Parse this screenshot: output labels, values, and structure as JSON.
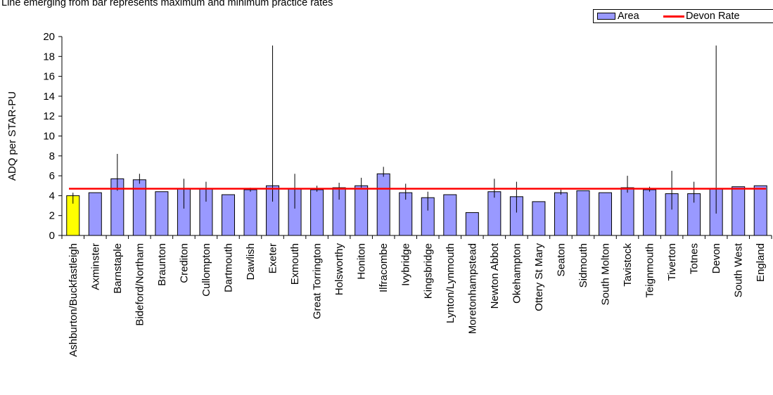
{
  "chart_data": {
    "type": "bar",
    "note": "Line emerging from bar represents maximum and minimum practice rates",
    "ylabel": "ADQ per STAR-PU",
    "ylim": [
      0,
      20
    ],
    "yticks": [
      0,
      2,
      4,
      6,
      8,
      10,
      12,
      14,
      16,
      18,
      20
    ],
    "categories": [
      "Ashburton/Buckfastleigh",
      "Axminster",
      "Barnstaple",
      "Bideford/Northam",
      "Braunton",
      "Crediton",
      "Cullompton",
      "Dartmouth",
      "Dawlish",
      "Exeter",
      "Exmouth",
      "Great Torrington",
      "Holsworthy",
      "Honiton",
      "Ilfracombe",
      "Ivybridge",
      "Kingsbridge",
      "Lynton/Lynmouth",
      "Moretonhampstead",
      "Newton Abbot",
      "Okehampton",
      "Ottery St Mary",
      "Seaton",
      "Sidmouth",
      "South Molton",
      "Tavistock",
      "Teignmouth",
      "Tiverton",
      "Totnes",
      "Devon",
      "South West",
      "England"
    ],
    "series": [
      {
        "name": "Area",
        "values": [
          4.0,
          4.3,
          5.7,
          5.6,
          4.4,
          4.7,
          4.7,
          4.1,
          4.6,
          5.0,
          4.7,
          4.6,
          4.8,
          5.0,
          6.2,
          4.3,
          3.8,
          4.1,
          2.3,
          4.4,
          3.9,
          3.4,
          4.3,
          4.5,
          4.3,
          4.8,
          4.6,
          4.2,
          4.2,
          4.7,
          4.9,
          5.0
        ],
        "min": [
          3.2,
          null,
          4.5,
          5.2,
          null,
          2.7,
          3.4,
          null,
          4.4,
          3.4,
          2.7,
          4.4,
          3.6,
          4.8,
          5.9,
          3.6,
          2.5,
          null,
          null,
          3.8,
          2.3,
          null,
          4.1,
          null,
          null,
          4.3,
          4.4,
          2.6,
          3.3,
          2.2,
          null,
          null
        ],
        "max": [
          4.3,
          null,
          8.2,
          6.2,
          null,
          5.7,
          5.4,
          null,
          4.8,
          19.1,
          6.2,
          5.0,
          5.3,
          5.8,
          6.9,
          5.2,
          4.4,
          null,
          null,
          5.7,
          5.4,
          null,
          4.6,
          null,
          null,
          6.0,
          4.9,
          6.5,
          5.4,
          19.1,
          null,
          null
        ],
        "colors": {
          "fill": "#9999ff",
          "highlight": "#ffff00",
          "highlight_index": 0,
          "stroke": "#000000"
        }
      },
      {
        "name": "Devon Rate",
        "type": "line",
        "value": 4.7,
        "color": "#ff0000"
      }
    ],
    "legend": {
      "position": "top-right",
      "entries": [
        "Area",
        "Devon Rate"
      ]
    }
  }
}
